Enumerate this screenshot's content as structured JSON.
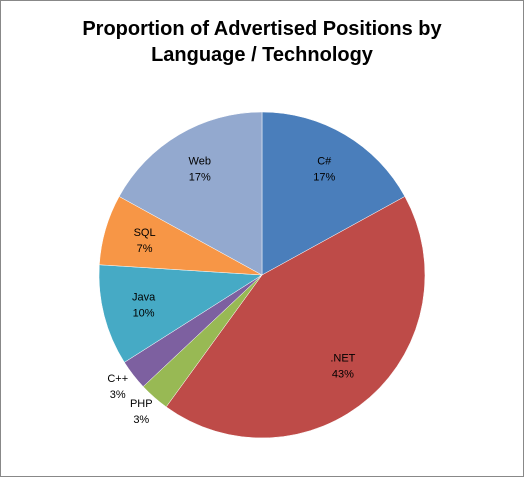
{
  "chart_data": {
    "type": "pie",
    "title": "Proportion of Advertised Positions by Language / Technology",
    "categories": [
      "C#",
      ".NET",
      "PHP",
      "C++",
      "Java",
      "SQL",
      "Web"
    ],
    "values": [
      17,
      43,
      3,
      3,
      10,
      7,
      17
    ],
    "value_labels": [
      "17%",
      "43%",
      "3%",
      "3%",
      "10%",
      "7%",
      "17%"
    ],
    "colors": [
      "#4a7ebb",
      "#be4b48",
      "#98b954",
      "#7d60a0",
      "#46aac5",
      "#f79646",
      "#93a9cf"
    ]
  }
}
